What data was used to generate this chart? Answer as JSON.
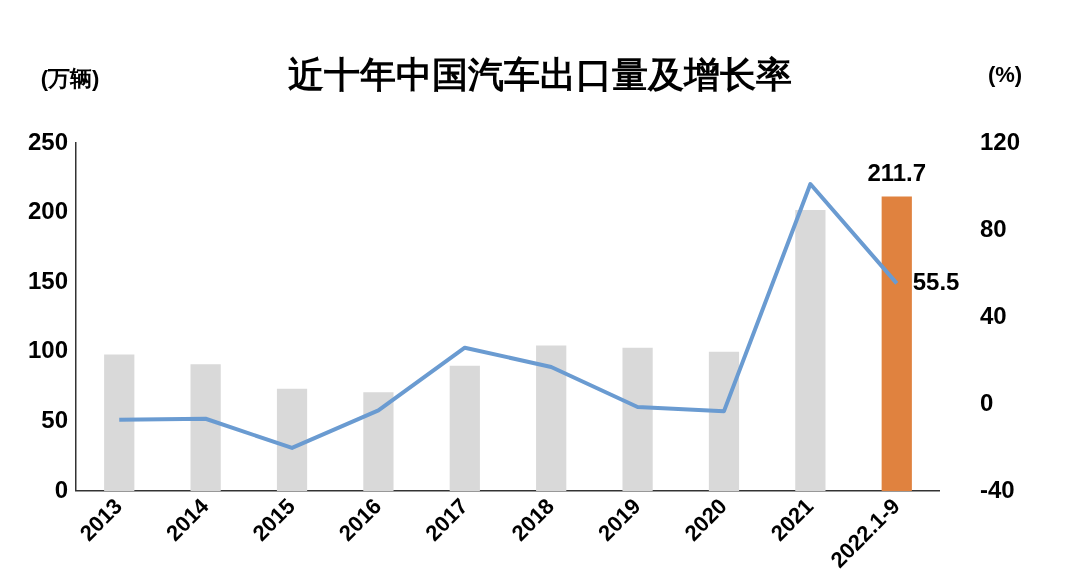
{
  "chart_data": {
    "type": "bar",
    "title": "近十年中国汽车出口量及增长率",
    "ylabel": "(万辆)",
    "y2label": "(%)",
    "categories": [
      "2013",
      "2014",
      "2015",
      "2016",
      "2017",
      "2018",
      "2019",
      "2020",
      "2021",
      "2022.1-9"
    ],
    "series": [
      {
        "colors": [
          "#d9d9d9",
          "#d9d9d9",
          "#d9d9d9",
          "#d9d9d9",
          "#d9d9d9",
          "#d9d9d9",
          "#d9d9d9",
          "#d9d9d9",
          "#d9d9d9",
          "#e0823f"
        ],
        "values": [
          98,
          91,
          73.5,
          71,
          90,
          104.5,
          103,
          100,
          202,
          211.7
        ],
        "value_labels": [
          null,
          null,
          null,
          null,
          null,
          null,
          null,
          null,
          null,
          "211.7"
        ]
      },
      {
        "type": "line",
        "axis": "y2",
        "color": "#6a9bd1",
        "values": [
          -7.3,
          -6.8,
          -20.2,
          -2.9,
          25.9,
          17,
          -1.4,
          -3.3,
          101.2,
          55.5
        ],
        "value_labels": [
          null,
          null,
          null,
          null,
          null,
          null,
          null,
          null,
          null,
          "55.5"
        ]
      }
    ],
    "ylim": [
      0,
      250
    ],
    "yticks": [
      0,
      50,
      100,
      150,
      200,
      250
    ],
    "y2lim": [
      -40,
      120
    ],
    "y2ticks": [
      -40,
      0,
      40,
      80,
      120
    ],
    "grid": false,
    "legend": false,
    "marker": "none",
    "line_style": "solid"
  }
}
